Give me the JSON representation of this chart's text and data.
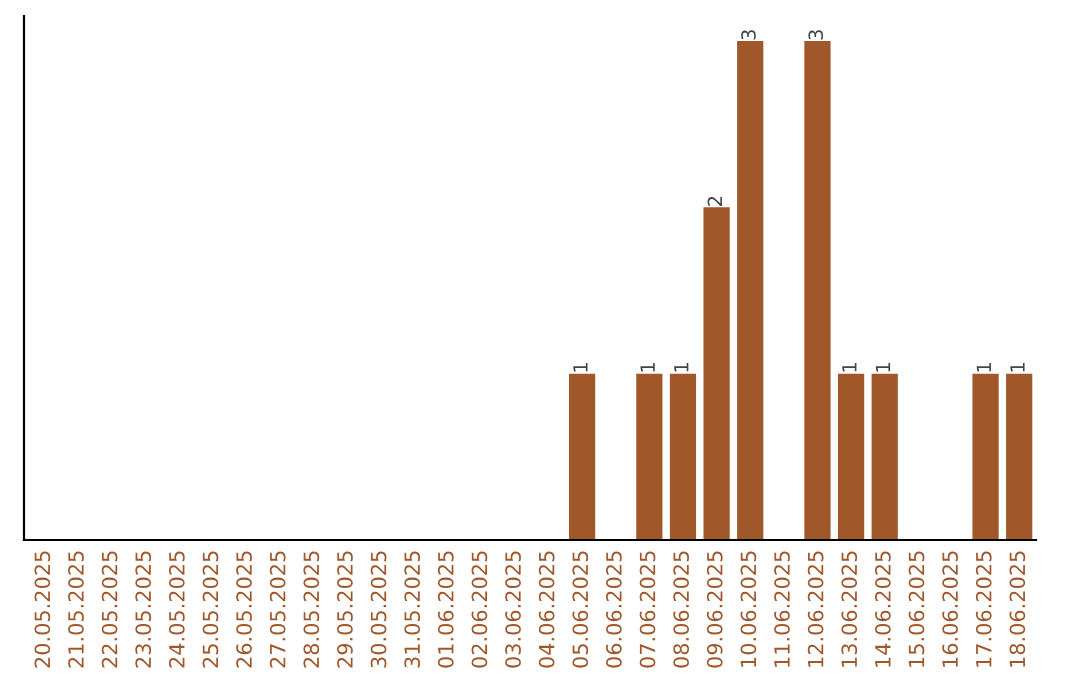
{
  "chart_data": {
    "type": "bar",
    "categories": [
      "20.05.2025",
      "21.05.2025",
      "22.05.2025",
      "23.05.2025",
      "24.05.2025",
      "25.05.2025",
      "26.05.2025",
      "27.05.2025",
      "28.05.2025",
      "29.05.2025",
      "30.05.2025",
      "31.05.2025",
      "01.06.2025",
      "02.06.2025",
      "03.06.2025",
      "04.06.2025",
      "05.06.2025",
      "06.06.2025",
      "07.06.2025",
      "08.06.2025",
      "09.06.2025",
      "10.06.2025",
      "11.06.2025",
      "12.06.2025",
      "13.06.2025",
      "14.06.2025",
      "15.06.2025",
      "16.06.2025",
      "17.06.2025",
      "18.06.2025"
    ],
    "values": [
      null,
      null,
      null,
      null,
      null,
      null,
      null,
      null,
      null,
      null,
      null,
      null,
      null,
      null,
      null,
      null,
      1,
      null,
      1,
      1,
      2,
      3,
      null,
      3,
      1,
      1,
      null,
      null,
      1,
      1
    ],
    "data_labels": true,
    "color": "#a0572a",
    "tick_labels": "x",
    "grid": false,
    "legend": false
  }
}
